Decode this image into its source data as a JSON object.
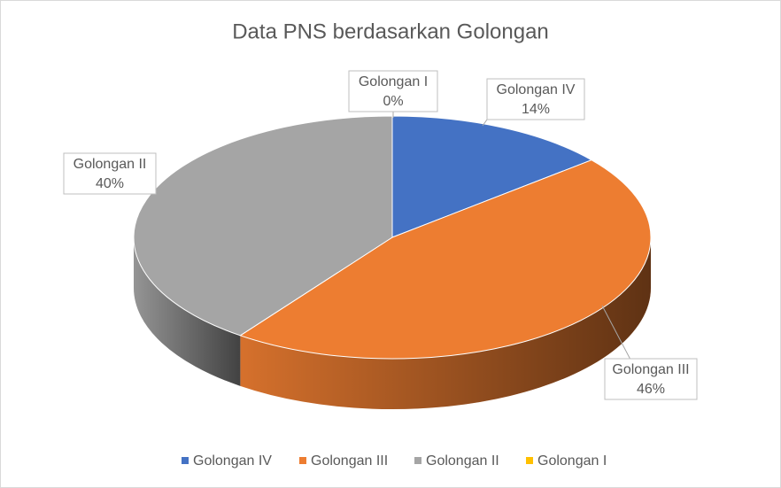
{
  "chart_data": {
    "type": "pie",
    "title": "Data PNS berdasarkan Golongan",
    "categories": [
      "Golongan IV",
      "Golongan III",
      "Golongan II",
      "Golongan I"
    ],
    "values": [
      14,
      46,
      40,
      0
    ],
    "value_labels": [
      "14%",
      "46%",
      "40%",
      "0%"
    ],
    "colors": [
      "#4472c4",
      "#ed7d31",
      "#a5a5a5",
      "#ffc000"
    ],
    "legend": "bottom"
  }
}
